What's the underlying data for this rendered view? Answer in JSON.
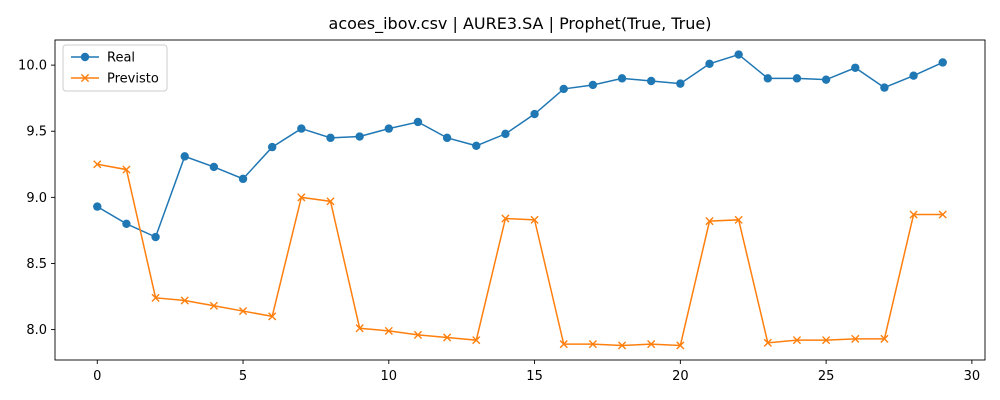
{
  "chart_data": {
    "type": "line",
    "title": "acoes_ibov.csv | AURE3.SA | Prophet(True, True)",
    "xlabel": "",
    "ylabel": "",
    "xlim": [
      -1.45,
      30.45
    ],
    "ylim": [
      7.77,
      10.19
    ],
    "xticks": [
      0,
      5,
      10,
      15,
      20,
      25,
      30
    ],
    "yticks": [
      8.0,
      8.5,
      9.0,
      9.5,
      10.0
    ],
    "ytick_labels": [
      "8.0",
      "8.5",
      "9.0",
      "9.5",
      "10.0"
    ],
    "grid": false,
    "legend_position": "top-left",
    "x": [
      0,
      1,
      2,
      3,
      4,
      5,
      6,
      7,
      8,
      9,
      10,
      11,
      12,
      13,
      14,
      15,
      16,
      17,
      18,
      19,
      20,
      21,
      22,
      23,
      24,
      25,
      26,
      27,
      28,
      29
    ],
    "series": [
      {
        "name": "Real",
        "color": "#1f77b4",
        "marker": "circle",
        "values": [
          8.93,
          8.8,
          8.7,
          9.31,
          9.23,
          9.14,
          9.38,
          9.52,
          9.45,
          9.46,
          9.52,
          9.57,
          9.45,
          9.39,
          9.48,
          9.63,
          9.82,
          9.85,
          9.9,
          9.88,
          9.86,
          10.01,
          10.08,
          9.9,
          9.9,
          9.89,
          9.98,
          9.83,
          9.92,
          10.02
        ]
      },
      {
        "name": "Previsto",
        "color": "#ff7f0e",
        "marker": "x",
        "values": [
          9.25,
          9.21,
          8.24,
          8.22,
          8.18,
          8.14,
          8.1,
          9.0,
          8.97,
          8.01,
          7.99,
          7.96,
          7.94,
          7.92,
          8.84,
          8.83,
          7.89,
          7.89,
          7.88,
          7.89,
          7.88,
          8.82,
          8.83,
          7.9,
          7.92,
          7.92,
          7.93,
          7.93,
          8.87,
          8.87
        ]
      }
    ]
  }
}
